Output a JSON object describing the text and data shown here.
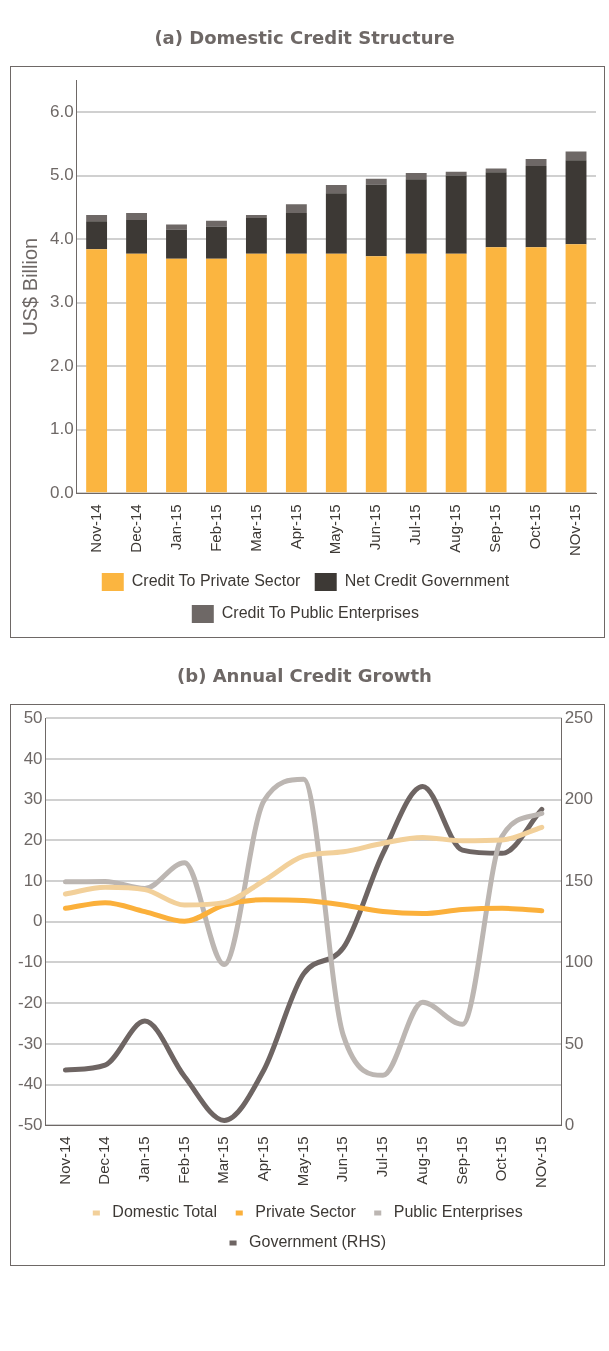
{
  "chart_data": [
    {
      "type": "bar",
      "title": "(a) Domestic Credit Structure",
      "ylabel": "US$ Billion",
      "categories": [
        "Nov-14",
        "Dec-14",
        "Jan-15",
        "Feb-15",
        "Mar-15",
        "Apr-15",
        "May-15",
        "Jun-15",
        "Jul-15",
        "Aug-15",
        "Sep-15",
        "Oct-15",
        "NOv-15"
      ],
      "series": [
        {
          "name": "Credit To Private Sector",
          "color": "#fbb540",
          "values": [
            3.84,
            3.77,
            3.69,
            3.69,
            3.77,
            3.77,
            3.77,
            3.73,
            3.77,
            3.77,
            3.87,
            3.87,
            3.92
          ]
        },
        {
          "name": "Net Credit Government",
          "color": "#3d3935",
          "values": [
            0.44,
            0.53,
            0.46,
            0.51,
            0.56,
            0.64,
            0.95,
            1.13,
            1.17,
            1.23,
            1.18,
            1.28,
            1.32
          ]
        },
        {
          "name": "Credit To Public Enterprises",
          "color": "#6e6866",
          "values": [
            0.1,
            0.11,
            0.08,
            0.09,
            0.05,
            0.14,
            0.13,
            0.09,
            0.1,
            0.06,
            0.06,
            0.11,
            0.14
          ]
        }
      ],
      "stacked": true,
      "ylim": [
        0,
        6.5
      ],
      "yticks": [
        {
          "value": 0,
          "label": "0.0"
        },
        {
          "value": 1,
          "label": "1.0"
        },
        {
          "value": 2,
          "label": "2.0"
        },
        {
          "value": 3,
          "label": "3.0"
        },
        {
          "value": 4,
          "label": "4.0"
        },
        {
          "value": 5,
          "label": "5.0"
        },
        {
          "value": 6,
          "label": "6.0"
        }
      ],
      "grid": "y",
      "legend": "bottom"
    },
    {
      "type": "line",
      "title": "(b) Annual Credit Growth",
      "categories": [
        "Nov-14",
        "Dec-14",
        "Jan-15",
        "Feb-15",
        "Mar-15",
        "Apr-15",
        "May-15",
        "Jun-15",
        "Jul-15",
        "Aug-15",
        "Sep-15",
        "Oct-15",
        "NOv-15"
      ],
      "series": [
        {
          "name": "Domestic Total",
          "color": "#f2d09a",
          "values": [
            6.8,
            8.5,
            7.9,
            4.1,
            4.7,
            10.1,
            16.1,
            17.2,
            19.3,
            20.7,
            19.9,
            20.1,
            23.2
          ]
        },
        {
          "name": "Private Sector",
          "color": "#fbb03b",
          "values": [
            3.3,
            4.7,
            2.5,
            0.1,
            4.1,
            5.4,
            5.2,
            4.1,
            2.5,
            2.0,
            3.0,
            3.3,
            2.7
          ]
        },
        {
          "name": "Public Enterprises",
          "color": "#bcb6b2",
          "values": [
            9.8,
            9.9,
            8.2,
            14.5,
            -10.5,
            29.7,
            35,
            -27.9,
            -37.7,
            -19.8,
            -25.2,
            21.0,
            26.6
          ]
        },
        {
          "name": "Government (RHS)",
          "color": "#6e6563",
          "axis": "y2",
          "values": [
            34,
            37,
            64,
            30,
            3,
            34,
            93,
            109,
            167,
            208,
            169,
            167,
            194
          ]
        }
      ],
      "ylim": [
        -50,
        50
      ],
      "yticks": [
        -50,
        -40,
        -30,
        -20,
        -10,
        0,
        10,
        20,
        30,
        40,
        50
      ],
      "y2lim": [
        0,
        250
      ],
      "y2ticks": [
        0,
        50,
        100,
        150,
        200,
        250
      ],
      "grid": "y",
      "legend": "bottom",
      "marker": "none"
    }
  ]
}
